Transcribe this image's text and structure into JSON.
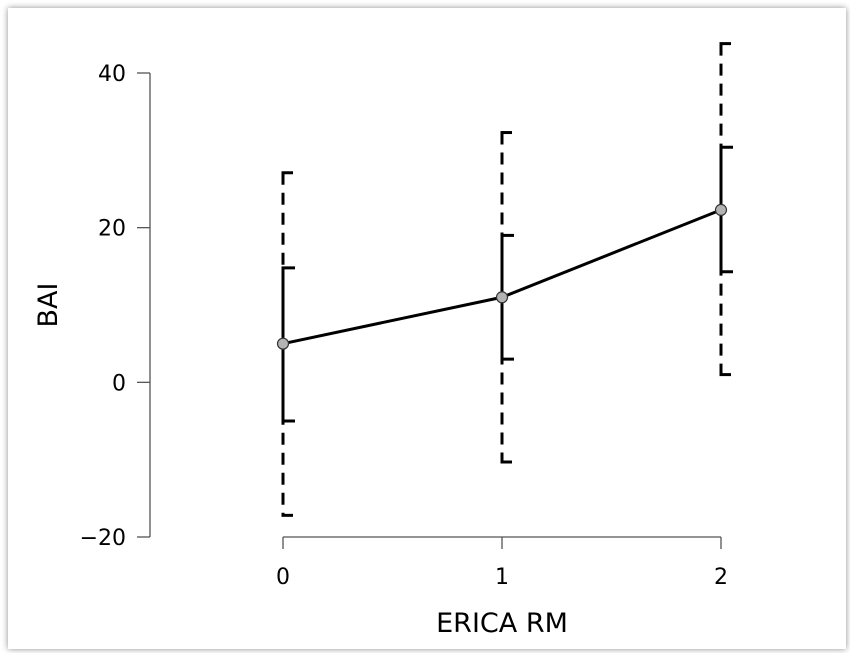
{
  "chart_data": {
    "type": "line",
    "xlabel": "ERICA RM",
    "ylabel": "BAI",
    "x": [
      0,
      1,
      2
    ],
    "x_ticks": [
      "0",
      "1",
      "2"
    ],
    "y_ticks": [
      "40",
      "20",
      "0",
      "−20"
    ],
    "y_tick_values": [
      40,
      20,
      0,
      -20
    ],
    "ylim": [
      -20,
      40
    ],
    "xlim": [
      0,
      2
    ],
    "series": [
      {
        "mean": [
          5.0,
          11.0,
          22.3
        ],
        "error_inner": [
          [
            -5.0,
            14.8
          ],
          [
            3.0,
            19.0
          ],
          [
            14.3,
            30.4
          ]
        ],
        "error_outer": [
          [
            -17.2,
            27.1
          ],
          [
            -10.3,
            32.3
          ],
          [
            1.0,
            43.8
          ]
        ]
      }
    ],
    "grid": false,
    "colors": {
      "line": "#000000",
      "marker_fill": "#b3b3b3",
      "axis": "#555555"
    }
  }
}
